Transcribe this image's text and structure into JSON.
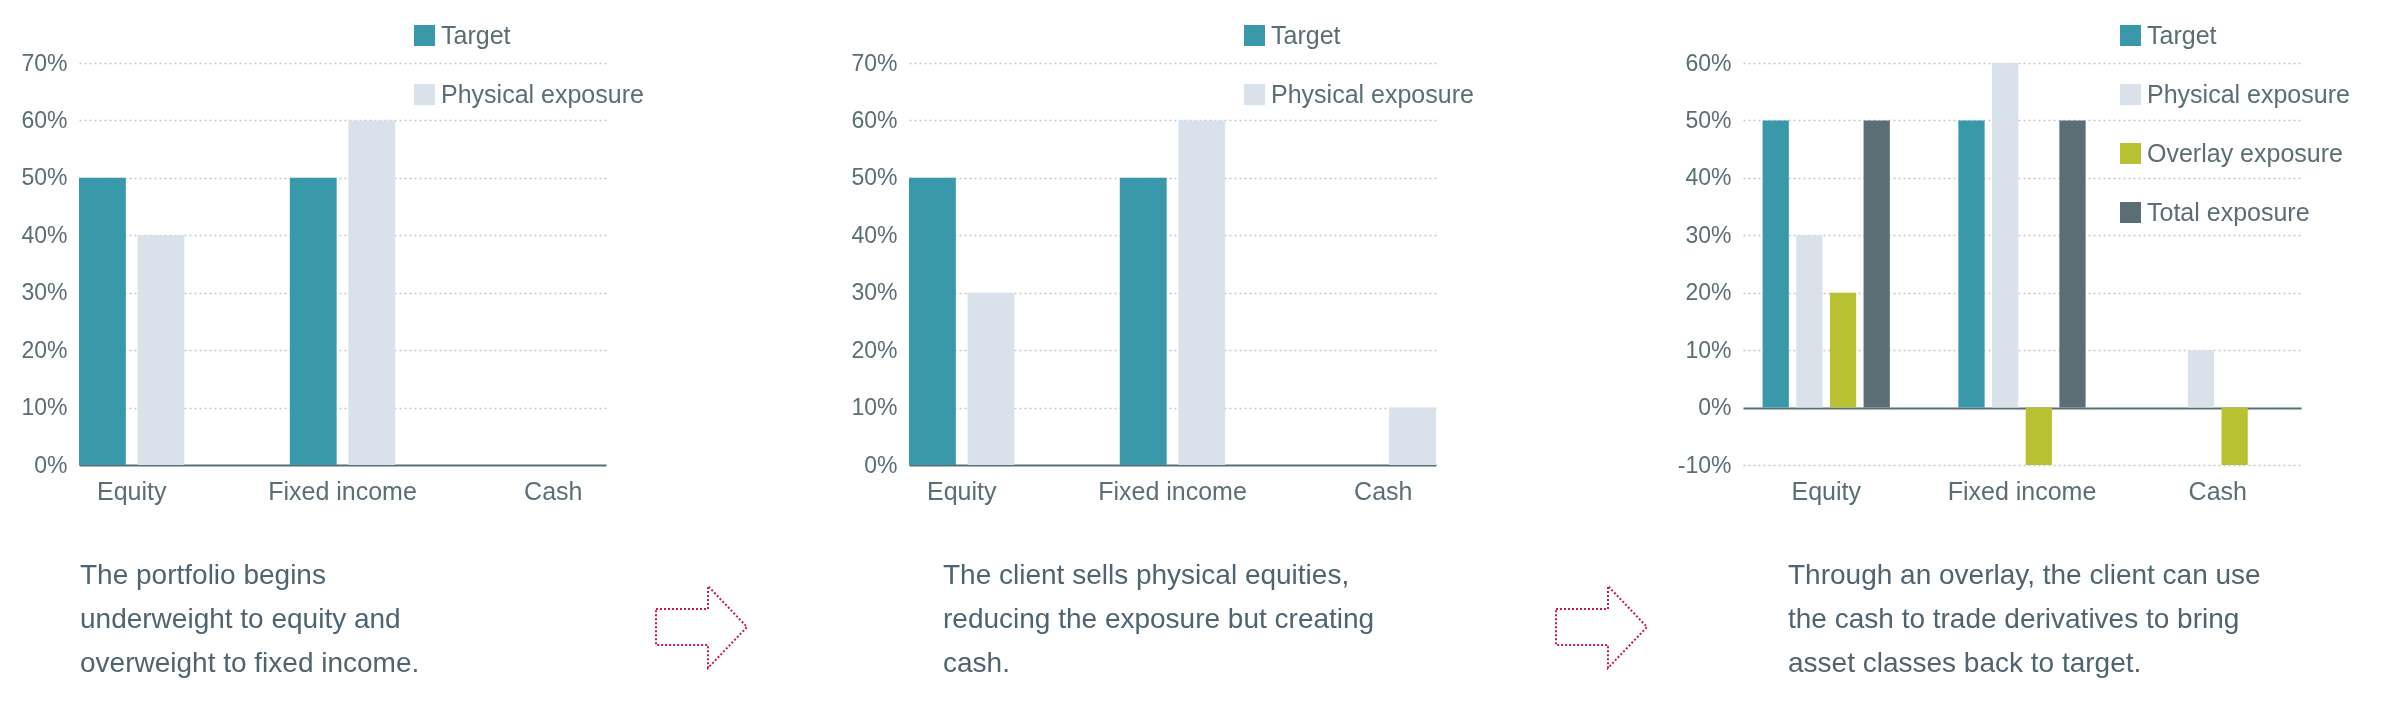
{
  "chart_data": [
    {
      "type": "bar",
      "categories": [
        "Equity",
        "Fixed income",
        "Cash"
      ],
      "series": [
        {
          "name": "Target",
          "color": "#3a98ab",
          "values": [
            50,
            50,
            0
          ]
        },
        {
          "name": "Physical exposure",
          "color": "#d9e1ea",
          "values": [
            40,
            60,
            0
          ]
        }
      ],
      "ylim": [
        0,
        70
      ],
      "yticks": [
        {
          "value": 0,
          "label": "0%"
        },
        {
          "value": 10,
          "label": "10%"
        },
        {
          "value": 20,
          "label": "20%"
        },
        {
          "value": 30,
          "label": "30%"
        },
        {
          "value": 40,
          "label": "40%"
        },
        {
          "value": 50,
          "label": "50%"
        },
        {
          "value": 60,
          "label": "60%"
        },
        {
          "value": 70,
          "label": "70%"
        }
      ],
      "grid": "y",
      "legend": "top right",
      "annotations": [
        "The portfolio begins underweight to equity and overweight to fixed income."
      ]
    },
    {
      "type": "bar",
      "categories": [
        "Equity",
        "Fixed income",
        "Cash"
      ],
      "series": [
        {
          "name": "Target",
          "color": "#3a98ab",
          "values": [
            50,
            50,
            0
          ]
        },
        {
          "name": "Physical exposure",
          "color": "#d9e1ea",
          "values": [
            30,
            60,
            10
          ]
        }
      ],
      "ylim": [
        0,
        70
      ],
      "yticks": [
        {
          "value": 0,
          "label": "0%"
        },
        {
          "value": 10,
          "label": "10%"
        },
        {
          "value": 20,
          "label": "20%"
        },
        {
          "value": 30,
          "label": "30%"
        },
        {
          "value": 40,
          "label": "40%"
        },
        {
          "value": 50,
          "label": "50%"
        },
        {
          "value": 60,
          "label": "60%"
        },
        {
          "value": 70,
          "label": "70%"
        }
      ],
      "grid": "y",
      "legend": "top right",
      "annotations": [
        "The client sells physical equities, reducing the exposure but creating cash."
      ]
    },
    {
      "type": "bar",
      "categories": [
        "Equity",
        "Fixed income",
        "Cash"
      ],
      "series": [
        {
          "name": "Target",
          "color": "#3a98ab",
          "values": [
            50,
            50,
            0
          ]
        },
        {
          "name": "Physical exposure",
          "color": "#d9e1ea",
          "values": [
            30,
            60,
            10
          ]
        },
        {
          "name": "Overlay exposure",
          "color": "#b8c132",
          "values": [
            20,
            -10,
            -10
          ]
        },
        {
          "name": "Total exposure",
          "color": "#5b6e75",
          "values": [
            50,
            50,
            0
          ]
        }
      ],
      "ylim": [
        -10,
        60
      ],
      "yticks": [
        {
          "value": -10,
          "label": "-10%"
        },
        {
          "value": 0,
          "label": "0%"
        },
        {
          "value": 10,
          "label": "10%"
        },
        {
          "value": 20,
          "label": "20%"
        },
        {
          "value": 30,
          "label": "30%"
        },
        {
          "value": 40,
          "label": "40%"
        },
        {
          "value": 50,
          "label": "50%"
        },
        {
          "value": 60,
          "label": "60%"
        }
      ],
      "grid": "y",
      "legend": "top right",
      "annotations": [
        "Through an overlay, the client can use the cash to trade derivatives to bring asset classes back to target."
      ]
    }
  ]
}
